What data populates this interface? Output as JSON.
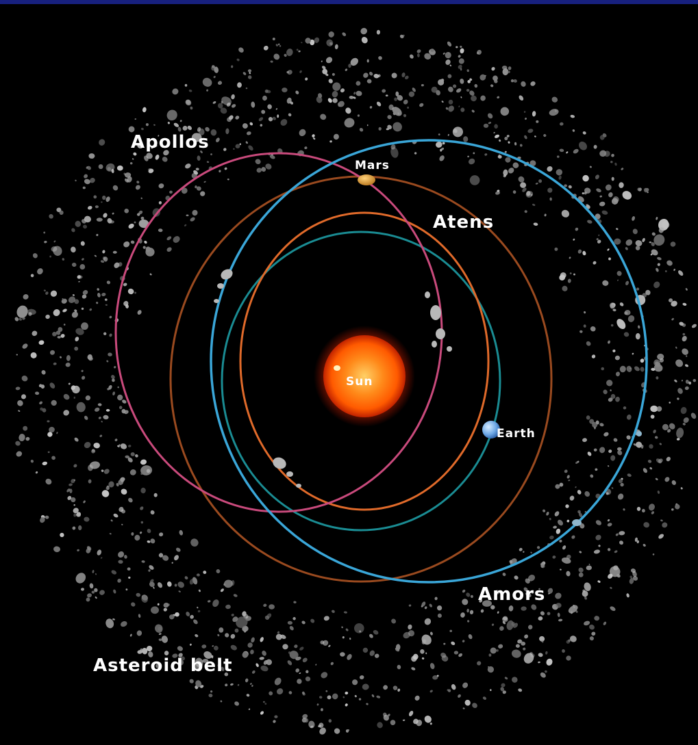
{
  "labels": {
    "apollos": "Apollos",
    "mars": "Mars",
    "atens": "Atens",
    "sun": "Sun",
    "earth": "Earth",
    "amors": "Amors",
    "asteroid_belt": "Asteroid belt"
  },
  "colors": {
    "background": "#000000",
    "top_bar": "#17207e",
    "apollos_orbit": "#c94a7c",
    "mars_orbit": "#9a4a1f",
    "atens_orbit": "#e06a2a",
    "earth_orbit": "#1a8c93",
    "amors_orbit": "#3aa6d8",
    "sun": "#ff6a0a",
    "asteroids": "#9a9a9a"
  }
}
